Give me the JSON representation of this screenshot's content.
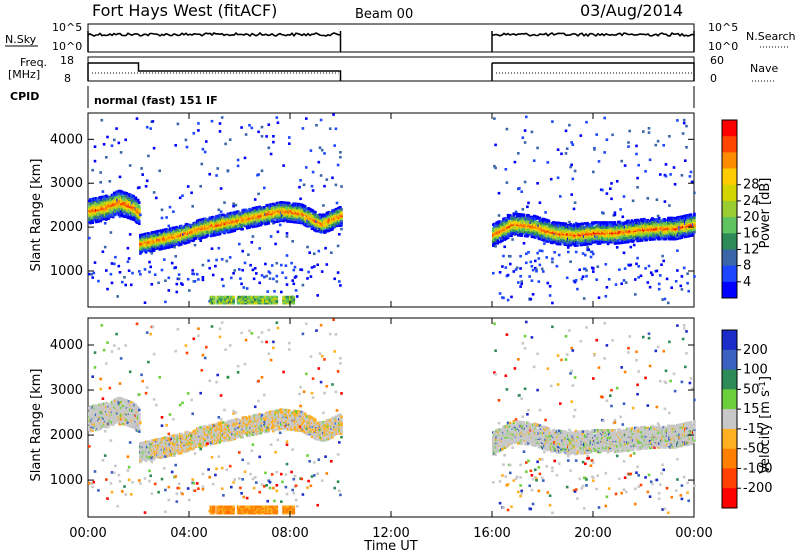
{
  "header": {
    "station": "Fort Hays West (fitACF)",
    "beam": "Beam 00",
    "date": "03/Aug/2014"
  },
  "top_panels": {
    "nsky_label": "N.Sky",
    "nsky_ticks": [
      "10^5",
      "10^0"
    ],
    "nsearch_label": "N.Search",
    "nsearch_ticks": [
      "10^5",
      "10^0"
    ],
    "freq_label_1": "Freq.",
    "freq_label_2": "[MHz]",
    "freq_ticks": [
      "18",
      "8"
    ],
    "nave_label": "Nave",
    "nave_ticks": [
      "60",
      "0"
    ],
    "cpid_label": "CPID",
    "cpid_text": "normal (fast) 151 IF"
  },
  "chart_data": [
    {
      "type": "heatmap",
      "name": "power-panel",
      "ylabel": "Slant Range [km]",
      "ylim": [
        180,
        4600
      ],
      "yticks": [
        "1000",
        "2000",
        "3000",
        "4000"
      ],
      "xlabel": "",
      "xlim": [
        0,
        24
      ],
      "colorbar": {
        "label": "Power [dB]",
        "ticks": [
          "4",
          "8",
          "12",
          "16",
          "20",
          "24",
          "28"
        ],
        "colors": [
          "#0000ff",
          "#1c46ff",
          "#3a66a8",
          "#2e8b57",
          "#5fc35f",
          "#9acd32",
          "#d4d400",
          "#ffcc00",
          "#ff8c00",
          "#ff4500",
          "#ff0000"
        ]
      },
      "data_coverage_hours": [
        [
          0,
          10
        ],
        [
          16,
          24
        ]
      ],
      "bands": [
        {
          "t": [
            0,
            0.6,
            1.2,
            1.8,
            2.0
          ],
          "range": [
            2350,
            2420,
            2550,
            2420,
            2300
          ],
          "width": 280
        },
        {
          "t": [
            2.0,
            2.8,
            3.6,
            4.4,
            5.2,
            6.0,
            6.8,
            7.6,
            8.4,
            9.2,
            10.0
          ],
          "range": [
            1600,
            1700,
            1800,
            1950,
            2050,
            2150,
            2250,
            2350,
            2300,
            2050,
            2250
          ],
          "width": 220
        },
        {
          "t": [
            16.0,
            16.8,
            17.6,
            18.4,
            19.2,
            20.0,
            20.8,
            21.6,
            22.4,
            23.2,
            24.0
          ],
          "range": [
            1800,
            2050,
            2000,
            1850,
            1800,
            1850,
            1850,
            1900,
            1950,
            1950,
            2050
          ],
          "width": 240
        }
      ]
    },
    {
      "type": "heatmap",
      "name": "velocity-panel",
      "ylabel": "Slant Range [km]",
      "ylim": [
        180,
        4600
      ],
      "yticks": [
        "1000",
        "2000",
        "3000",
        "4000"
      ],
      "xlabel": "Time UT",
      "xlim": [
        0,
        24
      ],
      "xticks": [
        "00:00",
        "04:00",
        "08:00",
        "12:00",
        "16:00",
        "20:00",
        "00:00"
      ],
      "colorbar": {
        "label": "Velocity [m s",
        "label_sup": "-1",
        "label_end": "]",
        "ticks": [
          "200",
          "100",
          "50",
          "15",
          "-15",
          "-50",
          "-100",
          "-200"
        ],
        "colors": [
          "#1c2cc8",
          "#3a60c0",
          "#2e8b57",
          "#6ccf3c",
          "#c8c8c8",
          "#ffb020",
          "#ff8000",
          "#ff4000",
          "#ff0000"
        ]
      },
      "data_coverage_hours": [
        [
          0,
          10
        ],
        [
          16,
          24
        ]
      ]
    }
  ]
}
